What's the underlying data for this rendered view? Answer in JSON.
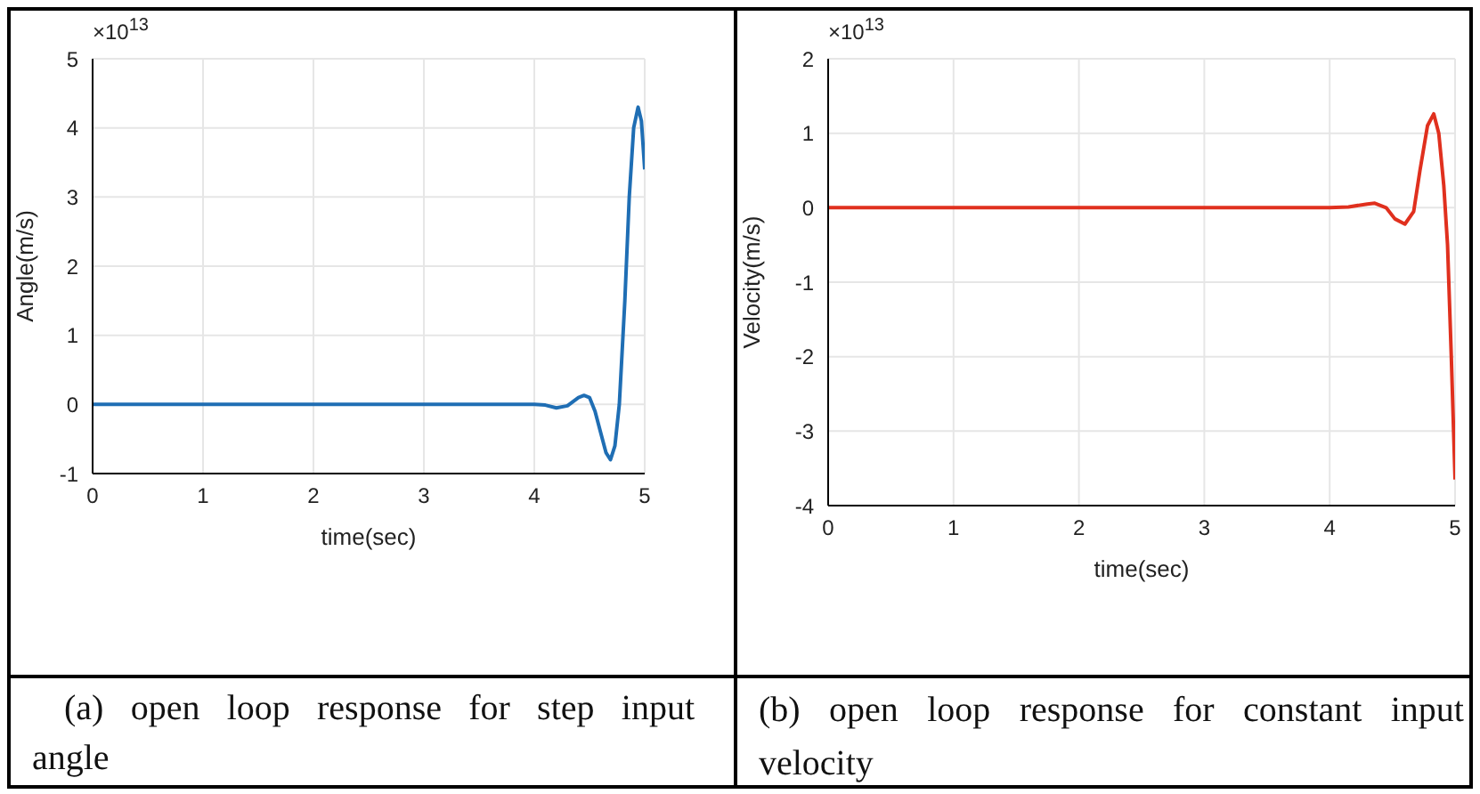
{
  "chart_data": [
    {
      "type": "line",
      "xlabel": "time(sec)",
      "ylabel": "Angle(m/s)",
      "color": "#1f6eb4",
      "x": [
        0,
        4,
        4.1,
        4.2,
        4.3,
        4.4,
        4.45,
        4.5,
        4.55,
        4.6,
        4.65,
        4.69,
        4.73,
        4.77,
        4.82,
        4.86,
        4.9,
        4.94,
        4.97,
        5
      ],
      "values": [
        0,
        0,
        -0.01,
        -0.05,
        -0.02,
        0.1,
        0.13,
        0.1,
        -0.1,
        -0.4,
        -0.7,
        -0.8,
        -0.6,
        0,
        1.5,
        3,
        4,
        4.3,
        4.1,
        3.4
      ],
      "xlim": [
        0,
        5
      ],
      "xticks": [
        0,
        1,
        2,
        3,
        4,
        5
      ],
      "ylim": [
        -1,
        5
      ],
      "yticks": [
        -1,
        0,
        1,
        2,
        3,
        4,
        5
      ],
      "grid": true,
      "annotations": [
        "×10$^{13}$",
        "(a) open loop response for step input angle"
      ]
    },
    {
      "type": "line",
      "xlabel": "time(sec)",
      "ylabel": "Velocity(m/s)",
      "color": "#e0301e",
      "x": [
        0,
        4,
        4.15,
        4.3,
        4.36,
        4.45,
        4.52,
        4.6,
        4.67,
        4.72,
        4.78,
        4.83,
        4.87,
        4.91,
        4.94,
        4.97,
        5
      ],
      "values": [
        0,
        0,
        0.01,
        0.05,
        0.06,
        0,
        -0.15,
        -0.22,
        -0.05,
        0.5,
        1.1,
        1.26,
        1,
        0.3,
        -0.5,
        -2,
        -3.65
      ],
      "xlim": [
        0,
        5
      ],
      "xticks": [
        0,
        1,
        2,
        3,
        4,
        5
      ],
      "ylim": [
        -4,
        2
      ],
      "yticks": [
        -4,
        -3,
        -2,
        -1,
        0,
        1,
        2
      ],
      "grid": true,
      "annotations": [
        "×10$^{13}$",
        "(b) open loop response for constant input velocity"
      ]
    }
  ]
}
